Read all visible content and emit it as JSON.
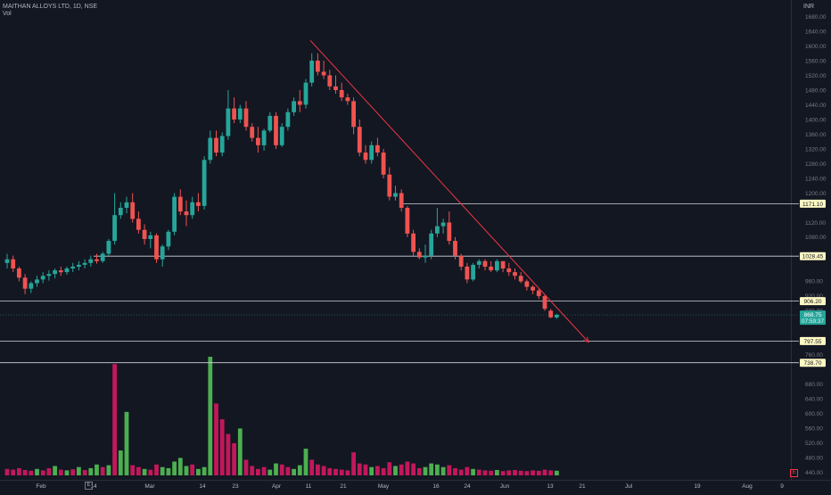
{
  "header": {
    "symbol": "MAITHAN ALLOYS LTD, 1D, NSE",
    "volume_label": "Vol",
    "currency": "INR"
  },
  "colors": {
    "background": "#131722",
    "up": "#26a69a",
    "down": "#ef5350",
    "vol_up": "#4caf50",
    "vol_down": "#c2185b",
    "trendline": "#f23645",
    "level": "#d1d4dc"
  },
  "markers": {
    "left": "E",
    "right": "E"
  },
  "chart_data": {
    "type": "candlestick",
    "title": "MAITHAN ALLOYS LTD, 1D, NSE",
    "price_axis": {
      "ticks": [
        440,
        480,
        520,
        560,
        600,
        640,
        680,
        720,
        760,
        800,
        840,
        880,
        920,
        960,
        1000,
        1040,
        1080,
        1120,
        1160,
        1200,
        1240,
        1280,
        1320,
        1360,
        1400,
        1440,
        1480,
        1520,
        1560,
        1600,
        1640,
        1680
      ],
      "hidden_ticks": [
        720,
        800,
        840,
        1000,
        1040,
        1160
      ],
      "range": [
        440,
        1700
      ]
    },
    "x_axis_labels": [
      "Feb",
      "14",
      "Mar",
      "14",
      "23",
      "Apr",
      "11",
      "21",
      "May",
      "16",
      "24",
      "Jun",
      "13",
      "21",
      "Jul",
      "19",
      "Aug",
      "9"
    ],
    "levels": [
      1171.1,
      1028.45,
      906.2,
      797.55,
      738.7
    ],
    "last_price": 868.75,
    "last_price_sub": "07:59:37",
    "trendline": {
      "from": [
        1615,
        "Apr 11"
      ],
      "to": [
        795,
        "Jun 27"
      ]
    },
    "candles": [
      [
        1010,
        1035,
        995,
        1020
      ],
      [
        1020,
        1030,
        985,
        995
      ],
      [
        995,
        1000,
        960,
        970
      ],
      [
        970,
        980,
        925,
        940
      ],
      [
        940,
        960,
        928,
        955
      ],
      [
        955,
        975,
        945,
        965
      ],
      [
        965,
        985,
        955,
        975
      ],
      [
        975,
        990,
        962,
        980
      ],
      [
        980,
        995,
        968,
        990
      ],
      [
        990,
        1000,
        975,
        985
      ],
      [
        985,
        1000,
        978,
        995
      ],
      [
        995,
        1010,
        985,
        1000
      ],
      [
        1000,
        1015,
        990,
        1005
      ],
      [
        1005,
        1020,
        995,
        1010
      ],
      [
        1010,
        1030,
        1000,
        1020
      ],
      [
        1020,
        1035,
        1008,
        1015
      ],
      [
        1015,
        1040,
        1010,
        1035
      ],
      [
        1035,
        1075,
        1030,
        1070
      ],
      [
        1070,
        1200,
        1060,
        1140
      ],
      [
        1140,
        1175,
        1130,
        1160
      ],
      [
        1160,
        1190,
        1145,
        1175
      ],
      [
        1175,
        1200,
        1120,
        1130
      ],
      [
        1130,
        1150,
        1090,
        1100
      ],
      [
        1100,
        1115,
        1060,
        1075
      ],
      [
        1075,
        1095,
        1050,
        1085
      ],
      [
        1085,
        1090,
        1010,
        1020
      ],
      [
        1020,
        1060,
        1000,
        1055
      ],
      [
        1055,
        1100,
        1045,
        1095
      ],
      [
        1095,
        1200,
        1085,
        1190
      ],
      [
        1190,
        1210,
        1140,
        1150
      ],
      [
        1150,
        1180,
        1110,
        1140
      ],
      [
        1140,
        1190,
        1130,
        1175
      ],
      [
        1175,
        1200,
        1150,
        1165
      ],
      [
        1165,
        1300,
        1155,
        1290
      ],
      [
        1290,
        1370,
        1280,
        1350
      ],
      [
        1350,
        1370,
        1300,
        1310
      ],
      [
        1310,
        1365,
        1300,
        1355
      ],
      [
        1355,
        1480,
        1345,
        1430
      ],
      [
        1430,
        1460,
        1390,
        1400
      ],
      [
        1400,
        1440,
        1390,
        1430
      ],
      [
        1430,
        1450,
        1370,
        1380
      ],
      [
        1380,
        1390,
        1340,
        1350
      ],
      [
        1350,
        1380,
        1310,
        1330
      ],
      [
        1330,
        1375,
        1315,
        1370
      ],
      [
        1370,
        1420,
        1365,
        1410
      ],
      [
        1410,
        1420,
        1320,
        1330
      ],
      [
        1330,
        1390,
        1325,
        1380
      ],
      [
        1380,
        1430,
        1370,
        1420
      ],
      [
        1420,
        1460,
        1410,
        1450
      ],
      [
        1450,
        1480,
        1420,
        1440
      ],
      [
        1440,
        1510,
        1430,
        1500
      ],
      [
        1500,
        1580,
        1490,
        1560
      ],
      [
        1560,
        1580,
        1520,
        1530
      ],
      [
        1530,
        1560,
        1510,
        1520
      ],
      [
        1520,
        1535,
        1480,
        1490
      ],
      [
        1490,
        1520,
        1470,
        1480
      ],
      [
        1480,
        1500,
        1450,
        1460
      ],
      [
        1460,
        1470,
        1440,
        1450
      ],
      [
        1450,
        1460,
        1360,
        1380
      ],
      [
        1380,
        1400,
        1300,
        1310
      ],
      [
        1310,
        1330,
        1280,
        1290
      ],
      [
        1290,
        1340,
        1280,
        1330
      ],
      [
        1330,
        1350,
        1300,
        1310
      ],
      [
        1310,
        1320,
        1240,
        1250
      ],
      [
        1250,
        1270,
        1180,
        1190
      ],
      [
        1190,
        1220,
        1180,
        1200
      ],
      [
        1200,
        1210,
        1150,
        1160
      ],
      [
        1160,
        1165,
        1080,
        1090
      ],
      [
        1090,
        1100,
        1030,
        1040
      ],
      [
        1040,
        1050,
        1020,
        1025
      ],
      [
        1025,
        1060,
        1010,
        1030
      ],
      [
        1030,
        1100,
        1020,
        1090
      ],
      [
        1090,
        1160,
        1080,
        1110
      ],
      [
        1110,
        1130,
        1090,
        1120
      ],
      [
        1120,
        1150,
        1060,
        1070
      ],
      [
        1070,
        1080,
        1020,
        1030
      ],
      [
        1030,
        1035,
        990,
        1000
      ],
      [
        1000,
        1010,
        955,
        965
      ],
      [
        965,
        1010,
        960,
        1005
      ],
      [
        1005,
        1020,
        995,
        1015
      ],
      [
        1015,
        1020,
        990,
        1000
      ],
      [
        1000,
        1015,
        985,
        990
      ],
      [
        990,
        1020,
        985,
        1015
      ],
      [
        1015,
        1015,
        985,
        995
      ],
      [
        995,
        1010,
        975,
        985
      ],
      [
        985,
        995,
        965,
        975
      ],
      [
        975,
        985,
        955,
        960
      ],
      [
        960,
        965,
        935,
        945
      ],
      [
        945,
        950,
        925,
        935
      ],
      [
        935,
        940,
        912,
        920
      ],
      [
        920,
        925,
        880,
        885
      ],
      [
        880,
        885,
        860,
        862
      ],
      [
        862,
        872,
        858,
        869
      ]
    ],
    "volumes": [
      [
        450,
        "dn"
      ],
      [
        448,
        "dn"
      ],
      [
        452,
        "dn"
      ],
      [
        447,
        "dn"
      ],
      [
        445,
        "dn"
      ],
      [
        450,
        "up"
      ],
      [
        446,
        "dn"
      ],
      [
        452,
        "dn"
      ],
      [
        458,
        "up"
      ],
      [
        448,
        "dn"
      ],
      [
        446,
        "up"
      ],
      [
        449,
        "dn"
      ],
      [
        455,
        "up"
      ],
      [
        447,
        "dn"
      ],
      [
        452,
        "up"
      ],
      [
        462,
        "up"
      ],
      [
        455,
        "dn"
      ],
      [
        460,
        "up"
      ],
      [
        735,
        "dn"
      ],
      [
        500,
        "up"
      ],
      [
        605,
        "up"
      ],
      [
        460,
        "dn"
      ],
      [
        455,
        "dn"
      ],
      [
        450,
        "up"
      ],
      [
        448,
        "dn"
      ],
      [
        462,
        "dn"
      ],
      [
        455,
        "up"
      ],
      [
        452,
        "up"
      ],
      [
        470,
        "up"
      ],
      [
        480,
        "up"
      ],
      [
        458,
        "up"
      ],
      [
        462,
        "dn"
      ],
      [
        450,
        "up"
      ],
      [
        455,
        "up"
      ],
      [
        755,
        "up"
      ],
      [
        628,
        "dn"
      ],
      [
        585,
        "dn"
      ],
      [
        545,
        "dn"
      ],
      [
        520,
        "dn"
      ],
      [
        560,
        "up"
      ],
      [
        475,
        "dn"
      ],
      [
        458,
        "dn"
      ],
      [
        450,
        "dn"
      ],
      [
        455,
        "dn"
      ],
      [
        448,
        "up"
      ],
      [
        465,
        "up"
      ],
      [
        462,
        "dn"
      ],
      [
        455,
        "dn"
      ],
      [
        450,
        "up"
      ],
      [
        460,
        "up"
      ],
      [
        505,
        "up"
      ],
      [
        475,
        "dn"
      ],
      [
        462,
        "dn"
      ],
      [
        458,
        "dn"
      ],
      [
        452,
        "dn"
      ],
      [
        450,
        "dn"
      ],
      [
        448,
        "dn"
      ],
      [
        446,
        "dn"
      ],
      [
        495,
        "dn"
      ],
      [
        465,
        "dn"
      ],
      [
        462,
        "dn"
      ],
      [
        455,
        "up"
      ],
      [
        458,
        "dn"
      ],
      [
        452,
        "dn"
      ],
      [
        468,
        "dn"
      ],
      [
        458,
        "up"
      ],
      [
        462,
        "dn"
      ],
      [
        470,
        "dn"
      ],
      [
        465,
        "dn"
      ],
      [
        452,
        "dn"
      ],
      [
        455,
        "up"
      ],
      [
        465,
        "up"
      ],
      [
        462,
        "up"
      ],
      [
        455,
        "up"
      ],
      [
        460,
        "dn"
      ],
      [
        452,
        "dn"
      ],
      [
        448,
        "dn"
      ],
      [
        455,
        "dn"
      ],
      [
        450,
        "up"
      ],
      [
        448,
        "dn"
      ],
      [
        446,
        "dn"
      ],
      [
        445,
        "dn"
      ],
      [
        447,
        "up"
      ],
      [
        444,
        "dn"
      ],
      [
        446,
        "dn"
      ],
      [
        447,
        "dn"
      ],
      [
        445,
        "dn"
      ],
      [
        444,
        "dn"
      ],
      [
        446,
        "dn"
      ],
      [
        445,
        "dn"
      ],
      [
        448,
        "dn"
      ],
      [
        446,
        "dn"
      ],
      [
        445,
        "up"
      ]
    ]
  }
}
